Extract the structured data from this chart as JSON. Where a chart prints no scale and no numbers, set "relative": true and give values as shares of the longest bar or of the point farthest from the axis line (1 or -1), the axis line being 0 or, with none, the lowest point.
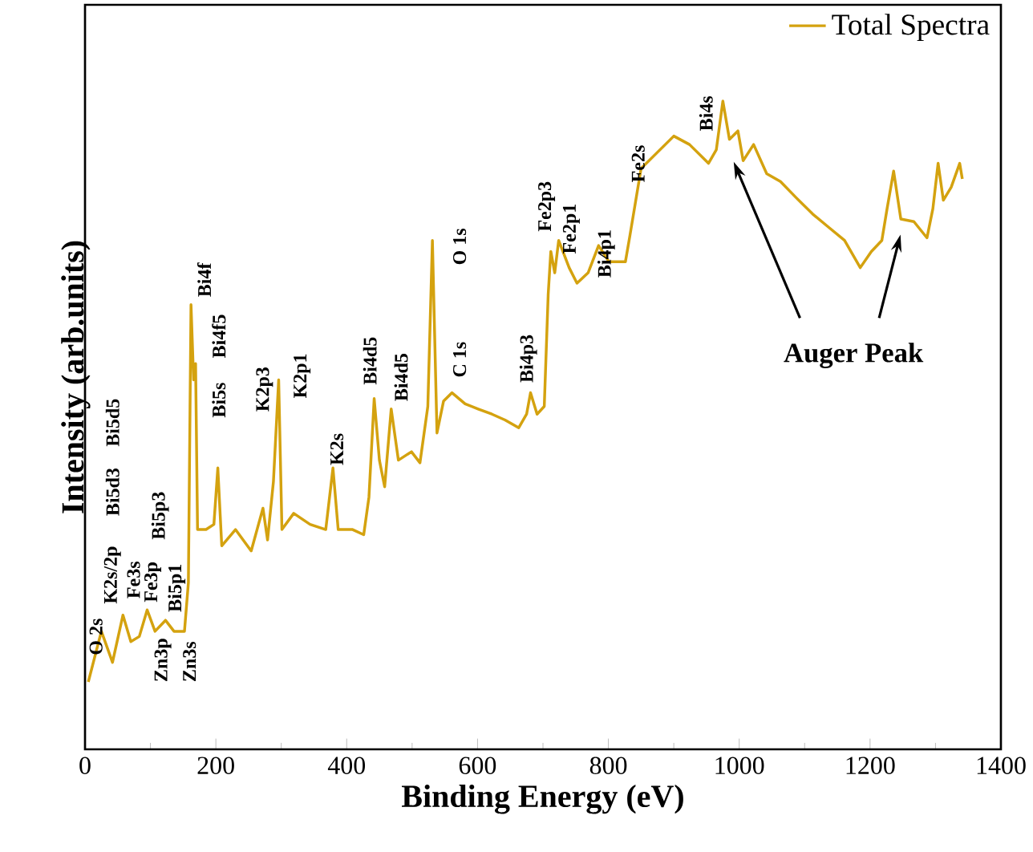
{
  "chart_data": {
    "type": "line",
    "relative": true,
    "xlabel": "Binding Energy (eV)",
    "ylabel": "Intensity (arb.units)",
    "xlim": [
      0,
      1400
    ],
    "xticks": [
      0,
      {
        "value": 100,
        "label": null
      },
      200,
      {
        "value": 300,
        "label": null
      },
      400,
      {
        "value": 500,
        "label": null
      },
      600,
      {
        "value": 700,
        "label": null
      },
      800,
      {
        "value": 900,
        "label": null
      },
      1000,
      {
        "value": 1100,
        "label": null
      },
      1200,
      {
        "value": 1300,
        "label": null
      },
      1400
    ],
    "legend": "top right",
    "series": [
      {
        "name": "Total Spectra",
        "color": "#d4a20f",
        "x": [
          5,
          25,
          42,
          58,
          70,
          83,
          95,
          107,
          123,
          136,
          152,
          158,
          162,
          166,
          169,
          172,
          185,
          197,
          203,
          209,
          230,
          254,
          272,
          279,
          288,
          296,
          301,
          319,
          344,
          368,
          379,
          387,
          409,
          426,
          434,
          442,
          450,
          458,
          468,
          479,
          499,
          512,
          524,
          531,
          538,
          548,
          561,
          581,
          601,
          622,
          642,
          663,
          675,
          681,
          691,
          702,
          708,
          712,
          718,
          724,
          740,
          752,
          769,
          785,
          801,
          826,
          833,
          850,
          900,
          924,
          953,
          965,
          975,
          985,
          998,
          1006,
          1022,
          1042,
          1063,
          1087,
          1112,
          1137,
          1161,
          1185,
          1202,
          1218,
          1226,
          1236,
          1247,
          1267,
          1287,
          1296,
          1304,
          1312,
          1324,
          1337,
          1341
        ],
        "values": [
          0.104,
          0.182,
          0.134,
          0.207,
          0.166,
          0.174,
          0.215,
          0.182,
          0.199,
          0.182,
          0.182,
          0.257,
          0.686,
          0.57,
          0.595,
          0.339,
          0.339,
          0.347,
          0.434,
          0.314,
          0.339,
          0.306,
          0.372,
          0.323,
          0.413,
          0.57,
          0.339,
          0.364,
          0.347,
          0.339,
          0.434,
          0.339,
          0.339,
          0.331,
          0.389,
          0.541,
          0.446,
          0.405,
          0.525,
          0.446,
          0.459,
          0.442,
          0.529,
          0.785,
          0.488,
          0.537,
          0.55,
          0.533,
          0.525,
          0.517,
          0.508,
          0.496,
          0.517,
          0.55,
          0.517,
          0.529,
          0.702,
          0.768,
          0.735,
          0.785,
          0.743,
          0.719,
          0.735,
          0.777,
          0.752,
          0.752,
          0.793,
          0.896,
          0.946,
          0.933,
          0.904,
          0.925,
          1.0,
          0.941,
          0.954,
          0.908,
          0.933,
          0.888,
          0.876,
          0.851,
          0.826,
          0.805,
          0.785,
          0.743,
          0.768,
          0.785,
          0.834,
          0.892,
          0.818,
          0.814,
          0.789,
          0.834,
          0.904,
          0.847,
          0.867,
          0.904,
          0.88
        ]
      }
    ],
    "annotations": [
      "O 2s",
      "K2s/2p",
      "Bi5d3",
      "Bi5d5",
      "Fe3s",
      "Fe3p",
      "Bi5p3",
      "Bi5p1",
      "Zn3p",
      "Zn3s",
      "Bi4f",
      "Bi4f5",
      "Bi5s",
      "K2p3",
      "K2p1",
      "K2s",
      "Bi4d5",
      "Bi4d5",
      "C 1s",
      "O 1s",
      "Bi4p3",
      "Fe2p3",
      "Fe2p1",
      "Bi4p1",
      "Fe2s",
      "Bi4s",
      "Auger Peak"
    ]
  }
}
